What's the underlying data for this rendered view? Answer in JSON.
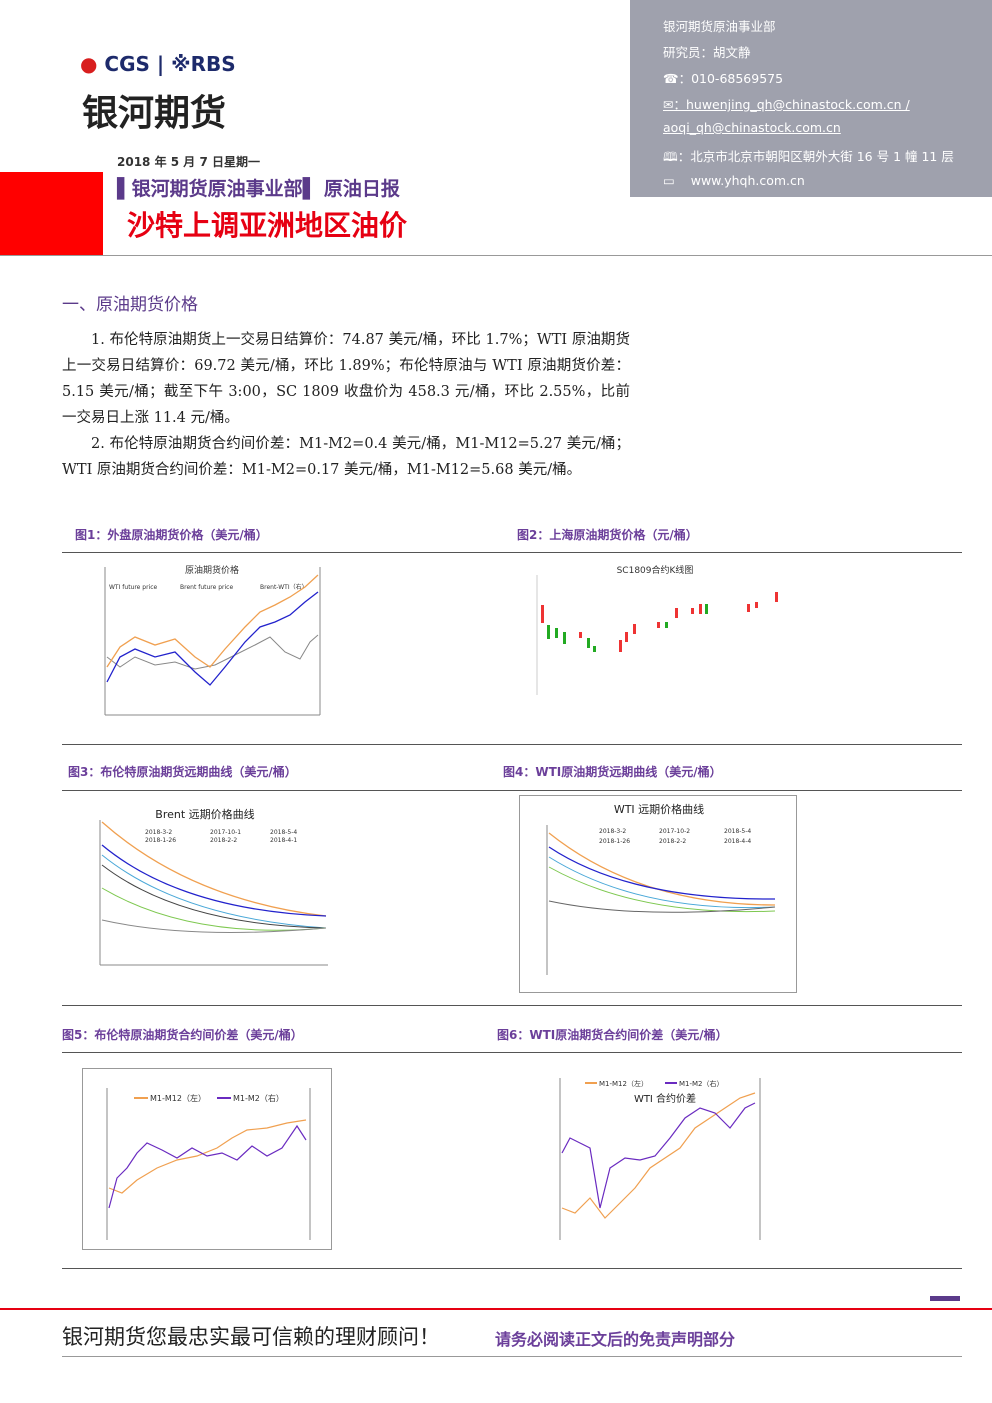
{
  "header": {
    "logo_brand": "CGS",
    "logo_partner": "RBS",
    "company": "银河期货",
    "date": "2018 年 5 月 7 日星期一",
    "department": "银河期货原油事业部",
    "report_type": "原油日报",
    "title": "沙特上调亚洲地区油价"
  },
  "contact": {
    "department": "银河期货原油事业部",
    "researcher": "研究员：胡文静",
    "phone": "：010-68569575",
    "email_1": "：huwenjing_qh@chinastock.com.cn /",
    "email_2": "aoqi_qh@chinastock.com.cn",
    "address": "：北京市北京市朝阳区朝外大街 16 号 1 幢 11 层",
    "website": "www.yhqh.com.cn"
  },
  "section": {
    "heading": "一、原油期货价格",
    "paragraphs": [
      "1. 布伦特原油期货上一交易日结算价：74.87 美元/桶，环比 1.7%；WTI 原油期货上一交易日结算价：69.72 美元/桶，环比 1.89%；布伦特原油与 WTI 原油期货价差：5.15 美元/桶；截至下午 3:00，SC 1809 收盘价为 458.3 元/桶，环比 2.55%，比前一交易日上涨 11.4 元/桶。",
      "2. 布伦特原油期货合约间价差：M1-M2=0.4 美元/桶，M1-M12=5.27 美元/桶；WTI 原油期货合约间价差：M1-M2=0.17 美元/桶，M1-M12=5.68 美元/桶。"
    ]
  },
  "figures": [
    {
      "caption": "图1：外盘原油期货价格（美元/桶）",
      "chart_title": "原油期货价格",
      "legend": [
        "WTI future price",
        "Brent future price",
        "Brent-WTI（右）"
      ]
    },
    {
      "caption": "图2：上海原油期货价格（元/桶）",
      "chart_title": "SC1809合约K线图",
      "legend": []
    },
    {
      "caption": "图3：布伦特原油期货远期曲线（美元/桶）",
      "chart_title": "Brent 远期价格曲线",
      "legend": [
        "2018-3-2",
        "2017-10-1",
        "2018-5-4",
        "2018-1-26",
        "2018-2-2",
        "2018-4-1"
      ]
    },
    {
      "caption": "图4：WTI原油期货远期曲线（美元/桶）",
      "chart_title": "WTI 远期价格曲线",
      "legend": [
        "2018-3-2",
        "2017-10-2",
        "2018-5-4",
        "2018-1-26",
        "2018-2-2",
        "2018-4-4"
      ]
    },
    {
      "caption": "图5：布伦特原油期货合约间价差（美元/桶）",
      "chart_title": "",
      "legend": [
        "M1-M12（左）",
        "M1-M2（右）"
      ]
    },
    {
      "caption": "图6：WTI原油期货合约间价差（美元/桶）",
      "chart_title": "WTI 合约价差",
      "legend": [
        "M1-M12（左）",
        "M1-M2（右）"
      ]
    }
  ],
  "footer": {
    "slogan": "银河期货您最忠实最可信赖的理财顾问！",
    "disclaimer": "请务必阅读正文后的免责声明部分"
  }
}
